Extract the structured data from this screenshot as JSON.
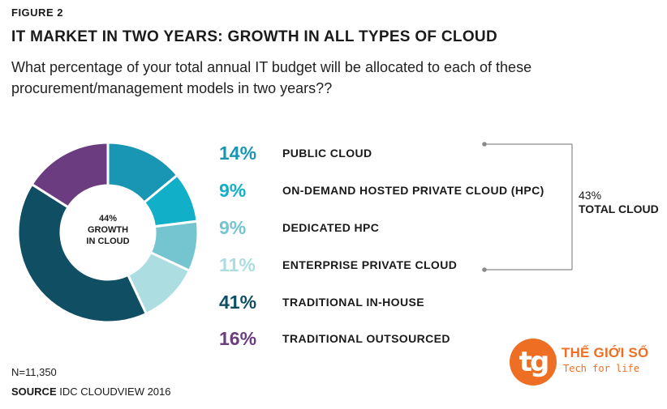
{
  "figure_label": "FIGURE 2",
  "title": "IT MARKET IN TWO YEARS: GROWTH IN ALL TYPES OF CLOUD",
  "subtitle": "What percentage of your total annual IT budget will be allocated to each of these procurement/management models in two years??",
  "center_label": {
    "value": "44%",
    "line1": "GROWTH",
    "line2": "IN CLOUD"
  },
  "bracket_label": {
    "value": "43%",
    "text": "TOTAL CLOUD"
  },
  "sample_size": "N=11,350",
  "source": {
    "label": "SOURCE",
    "text": " IDC CLOUDVIEW 2016"
  },
  "logo": {
    "mark": "tg",
    "name": "THẾ GIỚI SỐ",
    "tagline": "Tech for life"
  },
  "chart_data": {
    "type": "pie",
    "categories": [
      "PUBLIC CLOUD",
      "ON-DEMAND HOSTED PRIVATE CLOUD (HPC)",
      "DEDICATED HPC",
      "ENTERPRISE PRIVATE CLOUD",
      "TRADITIONAL IN-HOUSE",
      "TRADITIONAL OUTSOURCED"
    ],
    "values": [
      14,
      9,
      9,
      11,
      41,
      16
    ],
    "value_labels": [
      "14%",
      "9%",
      "9%",
      "11%",
      "41%",
      "16%"
    ],
    "colors": [
      "#1996b3",
      "#11afc8",
      "#74c5cf",
      "#acdde0",
      "#0f4e63",
      "#6b3d80"
    ],
    "donut": true,
    "start_angle_deg": 0,
    "direction": "clockwise"
  }
}
